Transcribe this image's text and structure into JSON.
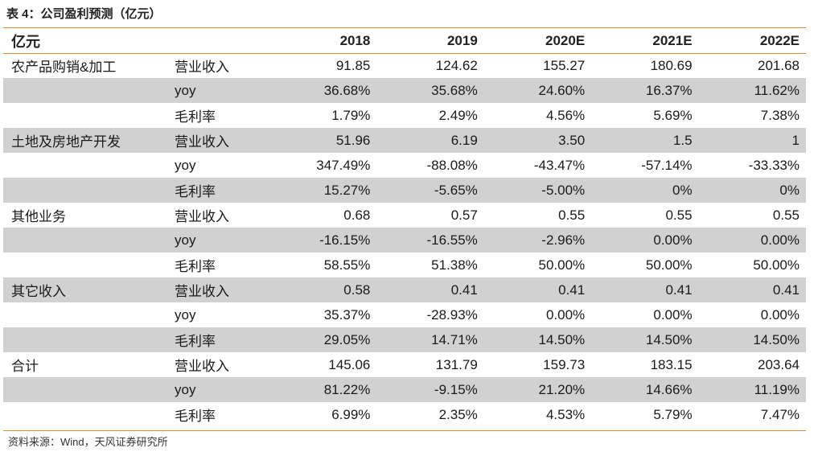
{
  "title": "表 4：公司盈利预测（亿元）",
  "header": {
    "unit": "亿元",
    "years": [
      "2018",
      "2019",
      "2020E",
      "2021E",
      "2022E"
    ]
  },
  "rows": [
    {
      "segment": "农产品购销&加工",
      "metric": "营业收入",
      "values": [
        "91.85",
        "124.62",
        "155.27",
        "180.69",
        "201.68"
      ]
    },
    {
      "segment": "",
      "metric": "yoy",
      "values": [
        "36.68%",
        "35.68%",
        "24.60%",
        "16.37%",
        "11.62%"
      ]
    },
    {
      "segment": "",
      "metric": "毛利率",
      "values": [
        "1.79%",
        "2.49%",
        "4.56%",
        "5.69%",
        "7.38%"
      ]
    },
    {
      "segment": "土地及房地产开发",
      "metric": "营业收入",
      "values": [
        "51.96",
        "6.19",
        "3.50",
        "1.5",
        "1"
      ]
    },
    {
      "segment": "",
      "metric": "yoy",
      "values": [
        "347.49%",
        "-88.08%",
        "-43.47%",
        "-57.14%",
        "-33.33%"
      ]
    },
    {
      "segment": "",
      "metric": "毛利率",
      "values": [
        "15.27%",
        "-5.65%",
        "-5.00%",
        "0%",
        "0%"
      ]
    },
    {
      "segment": "其他业务",
      "metric": "营业收入",
      "values": [
        "0.68",
        "0.57",
        "0.55",
        "0.55",
        "0.55"
      ]
    },
    {
      "segment": "",
      "metric": "yoy",
      "values": [
        "-16.15%",
        "-16.55%",
        "-2.96%",
        "0.00%",
        "0.00%"
      ]
    },
    {
      "segment": "",
      "metric": "毛利率",
      "values": [
        "58.55%",
        "51.38%",
        "50.00%",
        "50.00%",
        "50.00%"
      ]
    },
    {
      "segment": "其它收入",
      "metric": "营业收入",
      "values": [
        "0.58",
        "0.41",
        "0.41",
        "0.41",
        "0.41"
      ]
    },
    {
      "segment": "",
      "metric": "yoy",
      "values": [
        "35.37%",
        "-28.93%",
        "0.00%",
        "0.00%",
        "0.00%"
      ]
    },
    {
      "segment": "",
      "metric": "毛利率",
      "values": [
        "29.05%",
        "14.71%",
        "14.50%",
        "14.50%",
        "14.50%"
      ]
    },
    {
      "segment": "合计",
      "metric": "营业收入",
      "values": [
        "145.06",
        "131.79",
        "159.73",
        "183.15",
        "203.64"
      ]
    },
    {
      "segment": "",
      "metric": "yoy",
      "values": [
        "81.22%",
        "-9.15%",
        "21.20%",
        "14.66%",
        "11.19%"
      ]
    },
    {
      "segment": "",
      "metric": "毛利率",
      "values": [
        "6.99%",
        "2.35%",
        "4.53%",
        "5.79%",
        "7.47%"
      ]
    }
  ],
  "source": "资料来源：Wind，天风证券研究所",
  "colors": {
    "accent_rule": "#d98a3a",
    "row_shade": "#d1d1d1"
  }
}
